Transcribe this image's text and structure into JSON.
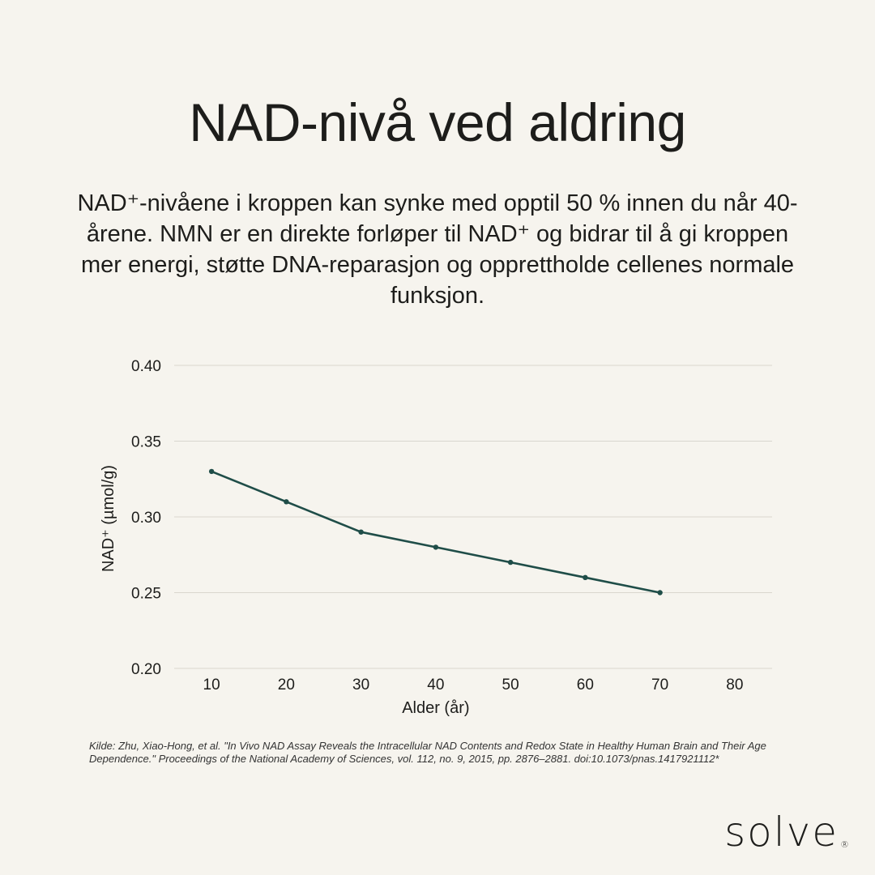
{
  "title": "NAD-nivå ved aldring",
  "lead": "NAD⁺-nivåene i kroppen kan synke med opptil 50 % innen du når 40-årene. NMN er en direkte forløper til NAD⁺ og bidrar til å gi kroppen mer energi, støtte DNA-reparasjon og opprettholde cellenes normale funksjon.",
  "chart_data": {
    "type": "line",
    "x": [
      10,
      20,
      30,
      40,
      50,
      60,
      70
    ],
    "y": [
      0.33,
      0.31,
      0.29,
      0.28,
      0.27,
      0.26,
      0.25
    ],
    "xticks": [
      "10",
      "20",
      "30",
      "40",
      "50",
      "60",
      "70",
      "80"
    ],
    "yticks": [
      "0.20",
      "0.25",
      "0.30",
      "0.35",
      "0.40"
    ],
    "xlabel": "Alder (år)",
    "ylabel": "NAD⁺ (µmol/g)",
    "xlim": [
      5,
      85
    ],
    "ylim": [
      0.2,
      0.4
    ],
    "grid": "horizontal",
    "line_color": "#1f4d48"
  },
  "source": "Kilde: Zhu, Xiao-Hong, et al. \"In Vivo NAD Assay Reveals the Intracellular NAD Contents and Redox State in Healthy Human Brain and Their Age Dependence.\" Proceedings of the National Academy of Sciences, vol. 112, no. 9, 2015, pp. 2876–2881. doi:10.1073/pnas.1417921112*",
  "logo": {
    "text": "solve",
    "mark": "®"
  }
}
